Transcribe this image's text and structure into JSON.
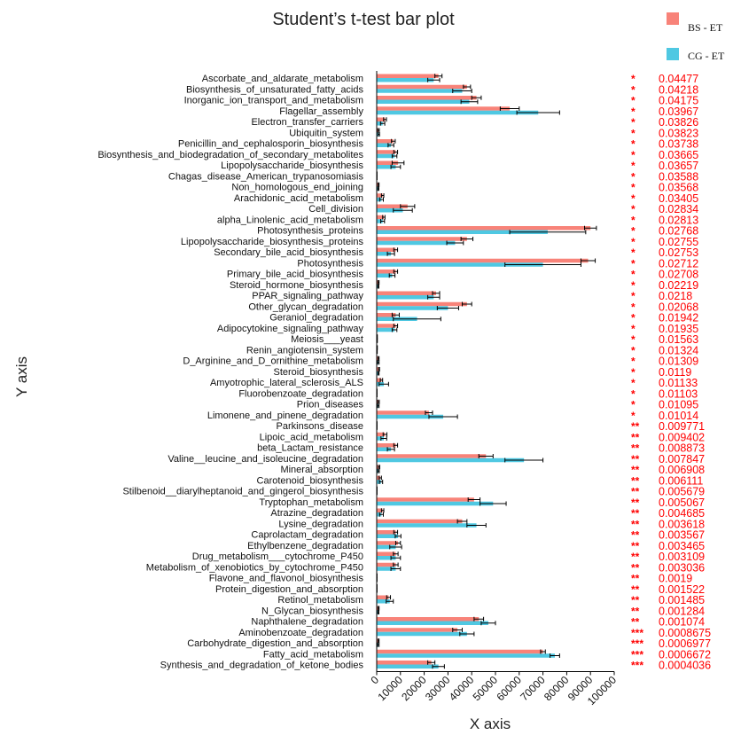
{
  "chart_data": {
    "type": "bar",
    "title": "Student’s t-test bar plot",
    "xlabel": "X axis",
    "ylabel": "Y axis",
    "xlim": [
      0,
      100000
    ],
    "xticks": [
      "0",
      "10000",
      "20000",
      "30000",
      "40000",
      "50000",
      "60000",
      "70000",
      "80000",
      "90000",
      "100000"
    ],
    "legend_position": "top-right",
    "colors": {
      "BS - ET": "#f88379",
      "CG - ET": "#4fc8e2",
      "pvalue": "#ff0000"
    },
    "series": [
      {
        "name": "BS - ET",
        "color": "#f88379"
      },
      {
        "name": "CG - ET",
        "color": "#4fc8e2"
      }
    ],
    "rows": [
      {
        "category": "Ascorbate_and_aldarate_metabolism",
        "bs": 26000,
        "cg": 24000,
        "bs_err": 1500,
        "cg_err": 2500,
        "sig": "*",
        "p": "0.04477"
      },
      {
        "category": "Biosynthesis_of_unsaturated_fatty_acids",
        "bs": 38000,
        "cg": 36000,
        "bs_err": 1500,
        "cg_err": 4000,
        "sig": "*",
        "p": "0.04218"
      },
      {
        "category": "Inorganic_ion_transport_and_metabolism",
        "bs": 42000,
        "cg": 39000,
        "bs_err": 2000,
        "cg_err": 3500,
        "sig": "*",
        "p": "0.04175"
      },
      {
        "category": "Flagellar_assembly",
        "bs": 56000,
        "cg": 68000,
        "bs_err": 4000,
        "cg_err": 9000,
        "sig": "*",
        "p": "0.03967"
      },
      {
        "category": "Electron_transfer_carriers",
        "bs": 3500,
        "cg": 2500,
        "bs_err": 600,
        "cg_err": 900,
        "sig": "*",
        "p": "0.03826"
      },
      {
        "category": "Ubiquitin_system",
        "bs": 800,
        "cg": 900,
        "bs_err": 300,
        "cg_err": 300,
        "sig": "*",
        "p": "0.03823"
      },
      {
        "category": "Penicillin_and_cephalosporin_biosynthesis",
        "bs": 7000,
        "cg": 6000,
        "bs_err": 800,
        "cg_err": 1200,
        "sig": "*",
        "p": "0.03738"
      },
      {
        "category": "Biosynthesis_and_biodegradation_of_secondary_metabolites",
        "bs": 8000,
        "cg": 7500,
        "bs_err": 800,
        "cg_err": 1000,
        "sig": "*",
        "p": "0.03665"
      },
      {
        "category": "Lipopolysaccharide_biosynthesis",
        "bs": 9000,
        "cg": 8000,
        "bs_err": 2500,
        "cg_err": 2000,
        "sig": "*",
        "p": "0.03657"
      },
      {
        "category": "Chagas_disease_American_trypanosomiasis",
        "bs": 100,
        "cg": 100,
        "bs_err": 50,
        "cg_err": 50,
        "sig": "*",
        "p": "0.03588"
      },
      {
        "category": "Non_homologous_end_joining",
        "bs": 800,
        "cg": 700,
        "bs_err": 200,
        "cg_err": 200,
        "sig": "*",
        "p": "0.03568"
      },
      {
        "category": "Arachidonic_acid_metabolism",
        "bs": 2500,
        "cg": 2000,
        "bs_err": 500,
        "cg_err": 800,
        "sig": "*",
        "p": "0.03405"
      },
      {
        "category": "Cell_division",
        "bs": 13000,
        "cg": 11000,
        "bs_err": 3000,
        "cg_err": 4000,
        "sig": "*",
        "p": "0.02834"
      },
      {
        "category": "alpha_Linolenic_acid_metabolism",
        "bs": 3000,
        "cg": 2500,
        "bs_err": 500,
        "cg_err": 800,
        "sig": "*",
        "p": "0.02813"
      },
      {
        "category": "Photosynthesis_proteins",
        "bs": 90000,
        "cg": 72000,
        "bs_err": 2500,
        "cg_err": 16000,
        "sig": "*",
        "p": "0.02768"
      },
      {
        "category": "Lipopolysaccharide_biosynthesis_proteins",
        "bs": 38000,
        "cg": 33000,
        "bs_err": 2500,
        "cg_err": 3500,
        "sig": "*",
        "p": "0.02755"
      },
      {
        "category": "Secondary_bile_acid_biosynthesis",
        "bs": 8000,
        "cg": 6000,
        "bs_err": 800,
        "cg_err": 1500,
        "sig": "*",
        "p": "0.02753"
      },
      {
        "category": "Photosynthesis",
        "bs": 89000,
        "cg": 70000,
        "bs_err": 3000,
        "cg_err": 16000,
        "sig": "*",
        "p": "0.02712"
      },
      {
        "category": "Primary_bile_acid_biosynthesis",
        "bs": 8000,
        "cg": 6500,
        "bs_err": 800,
        "cg_err": 1200,
        "sig": "*",
        "p": "0.02708"
      },
      {
        "category": "Steroid_hormone_biosynthesis",
        "bs": 800,
        "cg": 700,
        "bs_err": 200,
        "cg_err": 200,
        "sig": "*",
        "p": "0.02219"
      },
      {
        "category": "PPAR_signaling_pathway",
        "bs": 25000,
        "cg": 24000,
        "bs_err": 1500,
        "cg_err": 2500,
        "sig": "*",
        "p": "0.0218"
      },
      {
        "category": "Other_glycan_degradation",
        "bs": 38000,
        "cg": 30000,
        "bs_err": 2000,
        "cg_err": 4500,
        "sig": "*",
        "p": "0.02068"
      },
      {
        "category": "Geraniol_degradation",
        "bs": 8000,
        "cg": 17000,
        "bs_err": 1500,
        "cg_err": 10000,
        "sig": "*",
        "p": "0.01942"
      },
      {
        "category": "Adipocytokine_signaling_pathway",
        "bs": 8000,
        "cg": 7500,
        "bs_err": 800,
        "cg_err": 1000,
        "sig": "*",
        "p": "0.01935"
      },
      {
        "category": "Meiosis___yeast",
        "bs": 200,
        "cg": 200,
        "bs_err": 80,
        "cg_err": 80,
        "sig": "*",
        "p": "0.01563"
      },
      {
        "category": "Renin_angiotensin_system",
        "bs": 200,
        "cg": 150,
        "bs_err": 80,
        "cg_err": 80,
        "sig": "*",
        "p": "0.01324"
      },
      {
        "category": "D_Arginine_and_D_ornithine_metabolism",
        "bs": 800,
        "cg": 700,
        "bs_err": 200,
        "cg_err": 300,
        "sig": "*",
        "p": "0.01309"
      },
      {
        "category": "Steroid_biosynthesis",
        "bs": 1000,
        "cg": 800,
        "bs_err": 200,
        "cg_err": 200,
        "sig": "*",
        "p": "0.0119"
      },
      {
        "category": "Amyotrophic_lateral_sclerosis_ALS",
        "bs": 2000,
        "cg": 3000,
        "bs_err": 500,
        "cg_err": 2000,
        "sig": "*",
        "p": "0.01133"
      },
      {
        "category": "Fluorobenzoate_degradation",
        "bs": 100,
        "cg": 100,
        "bs_err": 50,
        "cg_err": 50,
        "sig": "*",
        "p": "0.01103"
      },
      {
        "category": "Prion_diseases",
        "bs": 800,
        "cg": 700,
        "bs_err": 300,
        "cg_err": 300,
        "sig": "*",
        "p": "0.01095"
      },
      {
        "category": "Limonene_and_pinene_degradation",
        "bs": 22000,
        "cg": 28000,
        "bs_err": 1500,
        "cg_err": 6000,
        "sig": "*",
        "p": "0.01014"
      },
      {
        "category": "Parkinsons_disease",
        "bs": 100,
        "cg": 100,
        "bs_err": 50,
        "cg_err": 50,
        "sig": "**",
        "p": "0.009771"
      },
      {
        "category": "Lipoic_acid_metabolism",
        "bs": 3500,
        "cg": 3000,
        "bs_err": 800,
        "cg_err": 1200,
        "sig": "**",
        "p": "0.009402"
      },
      {
        "category": "beta_Lactam_resistance",
        "bs": 8000,
        "cg": 6000,
        "bs_err": 800,
        "cg_err": 1500,
        "sig": "**",
        "p": "0.008873"
      },
      {
        "category": "Valine__leucine_and_isoleucine_degradation",
        "bs": 46000,
        "cg": 62000,
        "bs_err": 3000,
        "cg_err": 8000,
        "sig": "**",
        "p": "0.007847"
      },
      {
        "category": "Mineral_absorption",
        "bs": 1000,
        "cg": 800,
        "bs_err": 300,
        "cg_err": 300,
        "sig": "**",
        "p": "0.006908"
      },
      {
        "category": "Carotenoid_biosynthesis",
        "bs": 1500,
        "cg": 1800,
        "bs_err": 500,
        "cg_err": 700,
        "sig": "**",
        "p": "0.006111"
      },
      {
        "category": "Stilbenoid__diarylheptanoid_and_gingerol_biosynthesis",
        "bs": 100,
        "cg": 100,
        "bs_err": 50,
        "cg_err": 50,
        "sig": "**",
        "p": "0.005679"
      },
      {
        "category": "Tryptophan_metabolism",
        "bs": 41000,
        "cg": 49000,
        "bs_err": 2500,
        "cg_err": 5500,
        "sig": "**",
        "p": "0.005067"
      },
      {
        "category": "Atrazine_degradation",
        "bs": 2500,
        "cg": 2000,
        "bs_err": 500,
        "cg_err": 800,
        "sig": "**",
        "p": "0.004685"
      },
      {
        "category": "Lysine_degradation",
        "bs": 36000,
        "cg": 42000,
        "bs_err": 2000,
        "cg_err": 4000,
        "sig": "**",
        "p": "0.003618"
      },
      {
        "category": "Caprolactam_degradation",
        "bs": 8000,
        "cg": 9000,
        "bs_err": 800,
        "cg_err": 1200,
        "sig": "**",
        "p": "0.003567"
      },
      {
        "category": "Ethylbenzene_degradation",
        "bs": 9000,
        "cg": 8000,
        "bs_err": 1000,
        "cg_err": 2500,
        "sig": "**",
        "p": "0.003465"
      },
      {
        "category": "Drug_metabolism___cytochrome_P450",
        "bs": 8000,
        "cg": 8000,
        "bs_err": 1000,
        "cg_err": 2000,
        "sig": "**",
        "p": "0.003109"
      },
      {
        "category": "Metabolism_of_xenobiotics_by_cytochrome_P450",
        "bs": 8000,
        "cg": 8000,
        "bs_err": 1000,
        "cg_err": 2000,
        "sig": "**",
        "p": "0.003036"
      },
      {
        "category": "Flavone_and_flavonol_biosynthesis",
        "bs": 100,
        "cg": 100,
        "bs_err": 50,
        "cg_err": 50,
        "sig": "**",
        "p": "0.0019"
      },
      {
        "category": "Protein_digestion_and_absorption",
        "bs": 100,
        "cg": 100,
        "bs_err": 50,
        "cg_err": 50,
        "sig": "**",
        "p": "0.001522"
      },
      {
        "category": "Retinol_metabolism",
        "bs": 5000,
        "cg": 5500,
        "bs_err": 800,
        "cg_err": 1500,
        "sig": "**",
        "p": "0.001485"
      },
      {
        "category": "N_Glycan_biosynthesis",
        "bs": 800,
        "cg": 700,
        "bs_err": 200,
        "cg_err": 200,
        "sig": "**",
        "p": "0.001284"
      },
      {
        "category": "Naphthalene_degradation",
        "bs": 43000,
        "cg": 47000,
        "bs_err": 2000,
        "cg_err": 3000,
        "sig": "**",
        "p": "0.001074"
      },
      {
        "category": "Aminobenzoate_degradation",
        "bs": 34000,
        "cg": 38000,
        "bs_err": 2000,
        "cg_err": 3000,
        "sig": "***",
        "p": "0.0008675"
      },
      {
        "category": "Carbohydrate_digestion_and_absorption",
        "bs": 800,
        "cg": 700,
        "bs_err": 200,
        "cg_err": 300,
        "sig": "***",
        "p": "0.0006977"
      },
      {
        "category": "Fatty_acid_metabolism",
        "bs": 70000,
        "cg": 75000,
        "bs_err": 1000,
        "cg_err": 2000,
        "sig": "***",
        "p": "0.0006672"
      },
      {
        "category": "Synthesis_and_degradation_of_ketone_bodies",
        "bs": 23000,
        "cg": 26000,
        "bs_err": 1500,
        "cg_err": 2500,
        "sig": "***",
        "p": "0.0004036"
      }
    ]
  }
}
